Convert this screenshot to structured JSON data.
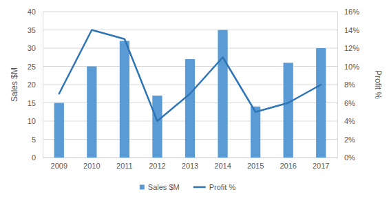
{
  "chart_data": {
    "type": "bar",
    "categories": [
      "2009",
      "2010",
      "2011",
      "2012",
      "2013",
      "2014",
      "2015",
      "2016",
      "2017"
    ],
    "series": [
      {
        "name": "Sales $M",
        "type": "bar",
        "color": "#5b9bd5",
        "values": [
          15,
          25,
          32,
          17,
          27,
          35,
          14,
          26,
          30
        ]
      },
      {
        "name": "Profit %",
        "type": "line",
        "color": "#2e75b6",
        "axis": "y2",
        "values": [
          7,
          14,
          13,
          4,
          7,
          11,
          5,
          6,
          8
        ]
      }
    ],
    "y_label": "Sales $M",
    "y2_label": "Profit %",
    "ylim": [
      0,
      40
    ],
    "yticks": [
      0,
      5,
      10,
      15,
      20,
      25,
      30,
      35,
      40
    ],
    "y2lim": [
      0,
      16
    ],
    "y2ticks": [
      {
        "value": 0,
        "label": "0%"
      },
      {
        "value": 2,
        "label": "2%"
      },
      {
        "value": 4,
        "label": "4%"
      },
      {
        "value": 6,
        "label": "6%"
      },
      {
        "value": 8,
        "label": "8%"
      },
      {
        "value": 10,
        "label": "10%"
      },
      {
        "value": 12,
        "label": "12%"
      },
      {
        "value": 14,
        "label": "14%"
      },
      {
        "value": 16,
        "label": "16%"
      }
    ],
    "grid": true,
    "legend": "bottom"
  }
}
